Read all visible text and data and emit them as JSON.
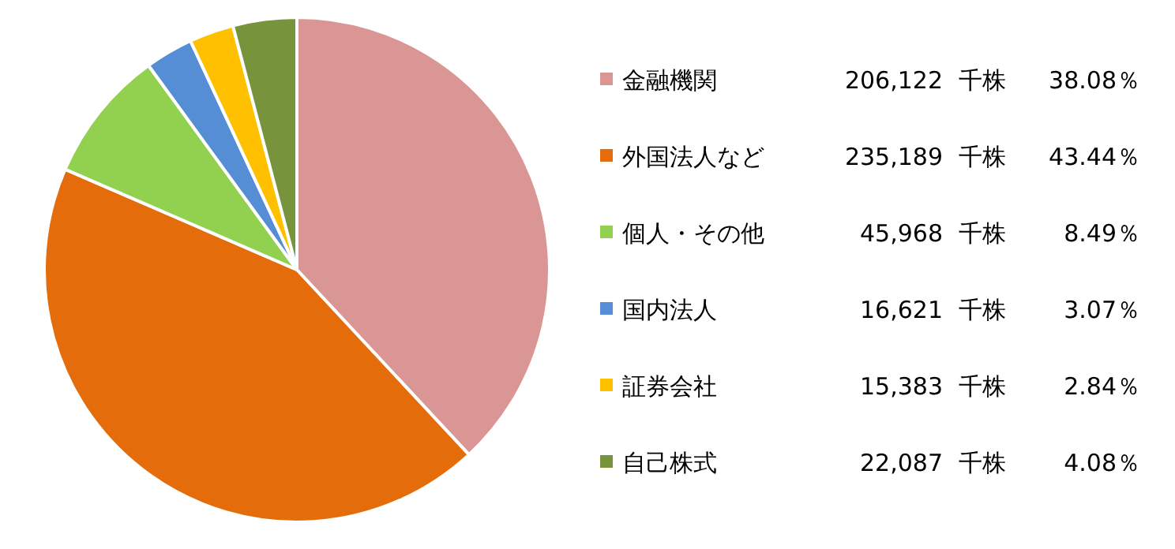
{
  "chart_data": {
    "type": "pie",
    "legend": "right",
    "categories": [
      "金融機関",
      "外国法人など",
      "個人・その他",
      "国内法人",
      "証券会社",
      "自己株式"
    ],
    "values": [
      38.08,
      43.44,
      8.49,
      3.07,
      2.84,
      4.08
    ],
    "value_labels": [
      "206,122 千株 38.08％",
      "235,189 千株 43.44％",
      "45,968 千株 8.49％",
      "16,621 千株 3.07％",
      "15,383 千株 2.84％",
      "22,087 千株 4.08％"
    ],
    "colors": [
      "#d99694",
      "#e46c0a",
      "#92d050",
      "#558ed5",
      "#ffc000",
      "#77933c"
    ]
  }
}
